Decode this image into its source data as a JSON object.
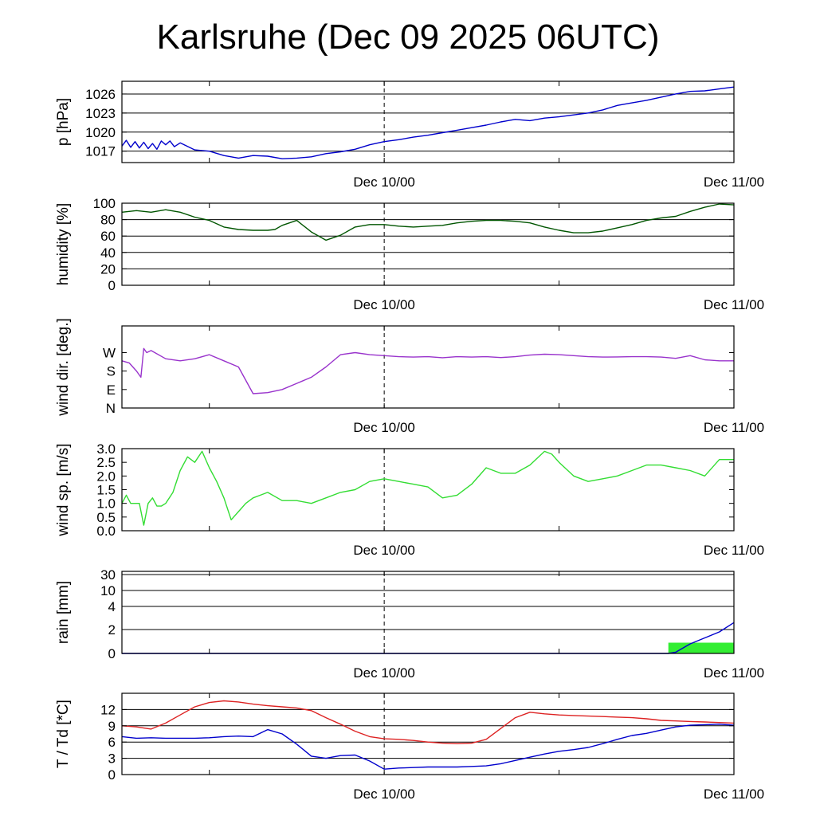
{
  "title": "Karlsruhe (Dec 09 2025 06UTC)",
  "time_axis": {
    "start_hour": 0,
    "end_hour": 42,
    "minor_ticks": [
      6,
      18,
      30
    ],
    "midnight_marker": 18,
    "labels": [
      {
        "hour": 18,
        "text": "Dec 10/00"
      },
      {
        "hour": 42,
        "text": "Dec 11/00"
      }
    ]
  },
  "chart_data": [
    {
      "type": "line",
      "ylabel": "p [hPa]",
      "ylim": [
        1015.2,
        1028
      ],
      "yticks": [
        1017,
        1020,
        1023,
        1026
      ],
      "grid": true,
      "series": [
        {
          "color": "#0000cc",
          "x": [
            0,
            0.3,
            0.6,
            0.9,
            1.2,
            1.5,
            1.8,
            2.1,
            2.4,
            2.7,
            3,
            3.3,
            3.6,
            4,
            5,
            6,
            7,
            8,
            9,
            10,
            11,
            12,
            13,
            14,
            15,
            16,
            17,
            18,
            19,
            20,
            21,
            22,
            23,
            24,
            25,
            26,
            27,
            28,
            29,
            30,
            31,
            32,
            33,
            34,
            35,
            36,
            37,
            38,
            39,
            40,
            41,
            42
          ],
          "y": [
            1017.8,
            1018.7,
            1017.6,
            1018.5,
            1017.5,
            1018.4,
            1017.4,
            1018.2,
            1017.3,
            1018.6,
            1018.0,
            1018.6,
            1017.7,
            1018.3,
            1017.2,
            1017.0,
            1016.3,
            1015.9,
            1016.3,
            1016.2,
            1015.8,
            1015.9,
            1016.1,
            1016.6,
            1016.9,
            1017.3,
            1018.0,
            1018.5,
            1018.8,
            1019.2,
            1019.5,
            1019.9,
            1020.3,
            1020.7,
            1021.1,
            1021.6,
            1022.0,
            1021.8,
            1022.2,
            1022.4,
            1022.7,
            1023.0,
            1023.5,
            1024.2,
            1024.6,
            1025.0,
            1025.5,
            1026.0,
            1026.4,
            1026.5,
            1026.8,
            1027.1
          ]
        }
      ]
    },
    {
      "type": "line",
      "ylabel": "humidity [%]",
      "ylim": [
        0,
        100
      ],
      "yticks": [
        0,
        20,
        40,
        60,
        80,
        100
      ],
      "grid": true,
      "series": [
        {
          "color": "#005500",
          "x": [
            0,
            1,
            2,
            3,
            4,
            5,
            6,
            7,
            8,
            9,
            10,
            10.5,
            11,
            12,
            13,
            14,
            15,
            16,
            17,
            18,
            19,
            20,
            21,
            22,
            23,
            24,
            25,
            26,
            27,
            28,
            29,
            30,
            31,
            32,
            33,
            34,
            35,
            36,
            37,
            38,
            39,
            40,
            41,
            42
          ],
          "y": [
            89,
            91,
            89,
            92,
            89,
            83,
            79,
            71,
            68,
            67,
            67,
            68,
            73,
            79,
            65,
            55,
            61,
            71,
            74,
            74,
            72,
            71,
            72,
            73,
            76,
            78,
            79,
            79,
            78,
            76,
            71,
            67,
            64,
            64,
            66,
            70,
            74,
            79,
            82,
            84,
            90,
            95,
            99,
            98
          ]
        }
      ]
    },
    {
      "type": "line",
      "ylabel": "wind dir. [deg.]",
      "ylim": [
        0,
        400
      ],
      "yticks": [
        0,
        90,
        180,
        270
      ],
      "ytick_labels": [
        "N",
        "E",
        "S",
        "W"
      ],
      "grid": false,
      "series": [
        {
          "color": "#9933cc",
          "x": [
            0,
            0.5,
            1,
            1.3,
            1.5,
            1.7,
            2,
            3,
            4,
            5,
            6,
            7,
            8,
            9,
            10,
            11,
            12,
            13,
            14,
            15,
            16,
            17,
            18,
            19,
            20,
            21,
            22,
            23,
            24,
            25,
            26,
            27,
            28,
            29,
            30,
            31,
            32,
            33,
            34,
            35,
            36,
            37,
            38,
            39,
            40,
            41,
            42
          ],
          "y": [
            230,
            220,
            180,
            150,
            290,
            270,
            280,
            240,
            230,
            240,
            260,
            230,
            200,
            70,
            75,
            90,
            120,
            150,
            200,
            260,
            270,
            260,
            255,
            250,
            248,
            250,
            245,
            250,
            248,
            250,
            246,
            250,
            258,
            262,
            260,
            255,
            250,
            248,
            249,
            250,
            250,
            248,
            242,
            255,
            235,
            230,
            230
          ]
        }
      ]
    },
    {
      "type": "line",
      "ylabel": "wind sp. [m/s]",
      "ylim": [
        0,
        3.0
      ],
      "yticks": [
        0.0,
        0.5,
        1.0,
        1.5,
        2.0,
        2.5,
        3.0
      ],
      "ytick_format": "1",
      "grid": false,
      "series": [
        {
          "color": "#33dd33",
          "x": [
            0,
            0.3,
            0.6,
            0.9,
            1.2,
            1.5,
            1.8,
            2.1,
            2.4,
            2.7,
            3,
            3.5,
            4,
            4.5,
            5,
            5.5,
            6,
            6.5,
            7,
            7.5,
            8,
            8.5,
            9,
            9.5,
            10,
            11,
            12,
            13,
            14,
            15,
            16,
            17,
            18,
            19,
            20,
            21,
            22,
            23,
            24,
            25,
            26,
            27,
            28,
            29,
            29.5,
            30,
            31,
            32,
            33,
            34,
            35,
            36,
            37,
            38,
            39,
            40,
            41,
            42
          ],
          "y": [
            1.0,
            1.3,
            1.0,
            1.0,
            1.0,
            0.2,
            1.0,
            1.2,
            0.9,
            0.9,
            1.0,
            1.4,
            2.2,
            2.7,
            2.5,
            2.9,
            2.3,
            1.8,
            1.2,
            0.4,
            0.7,
            1.0,
            1.2,
            1.3,
            1.4,
            1.1,
            1.1,
            1.0,
            1.2,
            1.4,
            1.5,
            1.8,
            1.9,
            1.8,
            1.7,
            1.6,
            1.2,
            1.3,
            1.7,
            2.3,
            2.1,
            2.1,
            2.4,
            2.9,
            2.8,
            2.5,
            2.0,
            1.8,
            1.9,
            2.0,
            2.2,
            2.4,
            2.4,
            2.3,
            2.2,
            2.0,
            2.6,
            2.6
          ]
        }
      ]
    },
    {
      "type": "line",
      "ylabel": "rain [mm]",
      "ylim": [
        0,
        32
      ],
      "yticks": [
        0,
        2,
        4,
        10,
        30
      ],
      "grid": true,
      "y_scale": "nonlinear",
      "bar": {
        "color": "#33ee33",
        "x_start": 37.5,
        "x_end": 42,
        "value": 0.5
      },
      "series": [
        {
          "color": "#0000cc",
          "x": [
            0,
            37.5,
            38,
            39,
            40,
            41,
            42
          ],
          "y": [
            0,
            0,
            0.1,
            0.8,
            1.3,
            1.8,
            2.6
          ]
        }
      ]
    },
    {
      "type": "line",
      "ylabel": "T / Td [*C]",
      "ylim": [
        0,
        15
      ],
      "yticks": [
        0,
        3,
        6,
        9,
        12
      ],
      "grid": true,
      "series": [
        {
          "color": "#dd2222",
          "x": [
            0,
            1,
            2,
            3,
            4,
            5,
            6,
            7,
            8,
            9,
            10,
            11,
            12,
            13,
            14,
            15,
            16,
            17,
            18,
            19,
            20,
            21,
            22,
            23,
            24,
            25,
            26,
            27,
            28,
            29,
            30,
            31,
            32,
            33,
            34,
            35,
            36,
            37,
            38,
            39,
            40,
            41,
            42
          ],
          "y": [
            9.0,
            8.8,
            8.4,
            9.5,
            11,
            12.5,
            13.3,
            13.6,
            13.4,
            13.0,
            12.7,
            12.5,
            12.3,
            11.8,
            10.5,
            9.3,
            8.0,
            7.0,
            6.6,
            6.5,
            6.3,
            6.0,
            5.8,
            5.7,
            5.8,
            6.5,
            8.5,
            10.5,
            11.5,
            11.2,
            11.0,
            10.9,
            10.8,
            10.7,
            10.6,
            10.5,
            10.3,
            10.0,
            9.9,
            9.8,
            9.7,
            9.6,
            9.5
          ]
        },
        {
          "color": "#0000cc",
          "x": [
            0,
            1,
            2,
            3,
            4,
            5,
            6,
            7,
            8,
            9,
            10,
            11,
            12,
            13,
            14,
            15,
            16,
            17,
            18,
            19,
            20,
            21,
            22,
            23,
            24,
            25,
            26,
            27,
            28,
            29,
            30,
            31,
            32,
            33,
            34,
            35,
            36,
            37,
            38,
            39,
            40,
            41,
            42
          ],
          "y": [
            7.0,
            6.7,
            6.8,
            6.7,
            6.7,
            6.7,
            6.8,
            7.0,
            7.1,
            7.0,
            8.3,
            7.5,
            5.6,
            3.4,
            3.0,
            3.5,
            3.6,
            2.5,
            1.0,
            1.2,
            1.3,
            1.4,
            1.4,
            1.4,
            1.5,
            1.6,
            2.0,
            2.6,
            3.2,
            3.8,
            4.3,
            4.6,
            5.0,
            5.7,
            6.5,
            7.2,
            7.6,
            8.2,
            8.8,
            9.1,
            9.2,
            9.3,
            9.1
          ]
        }
      ]
    }
  ]
}
